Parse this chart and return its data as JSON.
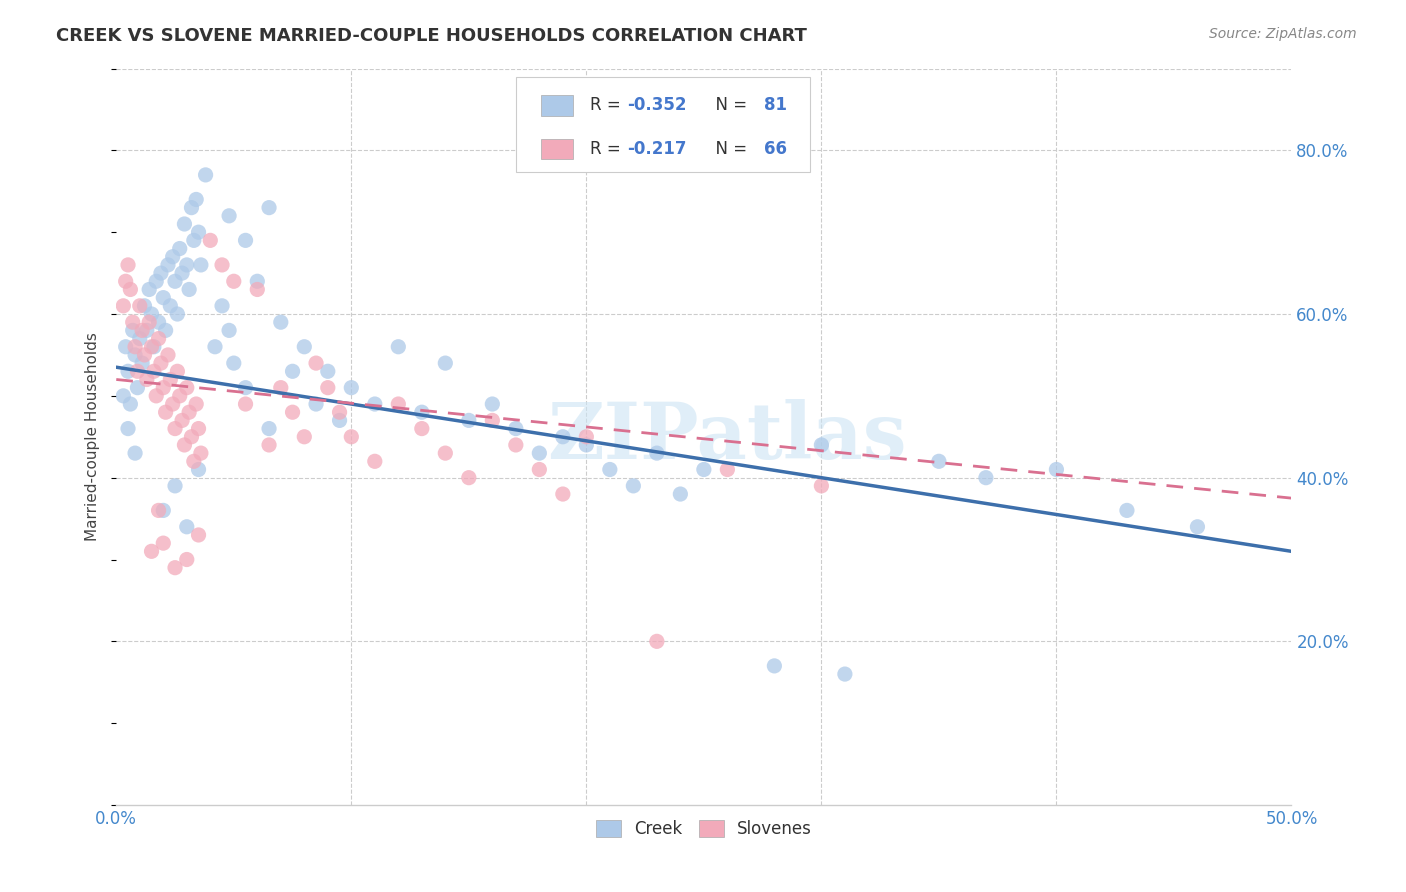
{
  "title": "CREEK VS SLOVENE MARRIED-COUPLE HOUSEHOLDS CORRELATION CHART",
  "source": "Source: ZipAtlas.com",
  "ylabel": "Married-couple Households",
  "xmin": 0.0,
  "xmax": 0.5,
  "ymin": 0.0,
  "ymax": 0.9,
  "creek_color": "#adc9e8",
  "slovene_color": "#f2aaba",
  "creek_line_color": "#3d6fab",
  "slovene_line_color": "#d97090",
  "legend_text_color": "#4477cc",
  "watermark": "ZIPatlas",
  "creek_R": "-0.352",
  "creek_N": "81",
  "slovene_R": "-0.217",
  "slovene_N": "66",
  "creek_trendline": [
    [
      0.0,
      0.535
    ],
    [
      0.5,
      0.31
    ]
  ],
  "slovene_trendline": [
    [
      0.0,
      0.52
    ],
    [
      0.5,
      0.375
    ]
  ],
  "creek_scatter": [
    [
      0.003,
      0.5
    ],
    [
      0.004,
      0.56
    ],
    [
      0.005,
      0.53
    ],
    [
      0.006,
      0.49
    ],
    [
      0.007,
      0.58
    ],
    [
      0.008,
      0.55
    ],
    [
      0.009,
      0.51
    ],
    [
      0.01,
      0.57
    ],
    [
      0.011,
      0.54
    ],
    [
      0.012,
      0.61
    ],
    [
      0.013,
      0.58
    ],
    [
      0.014,
      0.63
    ],
    [
      0.015,
      0.6
    ],
    [
      0.016,
      0.56
    ],
    [
      0.017,
      0.64
    ],
    [
      0.018,
      0.59
    ],
    [
      0.019,
      0.65
    ],
    [
      0.02,
      0.62
    ],
    [
      0.021,
      0.58
    ],
    [
      0.022,
      0.66
    ],
    [
      0.023,
      0.61
    ],
    [
      0.024,
      0.67
    ],
    [
      0.025,
      0.64
    ],
    [
      0.026,
      0.6
    ],
    [
      0.027,
      0.68
    ],
    [
      0.028,
      0.65
    ],
    [
      0.029,
      0.71
    ],
    [
      0.03,
      0.66
    ],
    [
      0.031,
      0.63
    ],
    [
      0.032,
      0.73
    ],
    [
      0.033,
      0.69
    ],
    [
      0.034,
      0.74
    ],
    [
      0.035,
      0.7
    ],
    [
      0.036,
      0.66
    ],
    [
      0.038,
      0.77
    ],
    [
      0.042,
      0.56
    ],
    [
      0.045,
      0.61
    ],
    [
      0.048,
      0.58
    ],
    [
      0.05,
      0.54
    ],
    [
      0.055,
      0.51
    ],
    [
      0.06,
      0.64
    ],
    [
      0.065,
      0.46
    ],
    [
      0.07,
      0.59
    ],
    [
      0.075,
      0.53
    ],
    [
      0.08,
      0.56
    ],
    [
      0.085,
      0.49
    ],
    [
      0.09,
      0.53
    ],
    [
      0.095,
      0.47
    ],
    [
      0.1,
      0.51
    ],
    [
      0.11,
      0.49
    ],
    [
      0.12,
      0.56
    ],
    [
      0.13,
      0.48
    ],
    [
      0.14,
      0.54
    ],
    [
      0.15,
      0.47
    ],
    [
      0.16,
      0.49
    ],
    [
      0.17,
      0.46
    ],
    [
      0.18,
      0.43
    ],
    [
      0.19,
      0.45
    ],
    [
      0.2,
      0.44
    ],
    [
      0.048,
      0.72
    ],
    [
      0.055,
      0.69
    ],
    [
      0.065,
      0.73
    ],
    [
      0.02,
      0.36
    ],
    [
      0.025,
      0.39
    ],
    [
      0.03,
      0.34
    ],
    [
      0.035,
      0.41
    ],
    [
      0.21,
      0.41
    ],
    [
      0.22,
      0.39
    ],
    [
      0.23,
      0.43
    ],
    [
      0.24,
      0.38
    ],
    [
      0.25,
      0.41
    ],
    [
      0.3,
      0.44
    ],
    [
      0.35,
      0.42
    ],
    [
      0.37,
      0.4
    ],
    [
      0.4,
      0.41
    ],
    [
      0.43,
      0.36
    ],
    [
      0.46,
      0.34
    ],
    [
      0.28,
      0.17
    ],
    [
      0.31,
      0.16
    ],
    [
      0.005,
      0.46
    ],
    [
      0.008,
      0.43
    ]
  ],
  "slovene_scatter": [
    [
      0.003,
      0.61
    ],
    [
      0.004,
      0.64
    ],
    [
      0.005,
      0.66
    ],
    [
      0.006,
      0.63
    ],
    [
      0.007,
      0.59
    ],
    [
      0.008,
      0.56
    ],
    [
      0.009,
      0.53
    ],
    [
      0.01,
      0.61
    ],
    [
      0.011,
      0.58
    ],
    [
      0.012,
      0.55
    ],
    [
      0.013,
      0.52
    ],
    [
      0.014,
      0.59
    ],
    [
      0.015,
      0.56
    ],
    [
      0.016,
      0.53
    ],
    [
      0.017,
      0.5
    ],
    [
      0.018,
      0.57
    ],
    [
      0.019,
      0.54
    ],
    [
      0.02,
      0.51
    ],
    [
      0.021,
      0.48
    ],
    [
      0.022,
      0.55
    ],
    [
      0.023,
      0.52
    ],
    [
      0.024,
      0.49
    ],
    [
      0.025,
      0.46
    ],
    [
      0.026,
      0.53
    ],
    [
      0.027,
      0.5
    ],
    [
      0.028,
      0.47
    ],
    [
      0.029,
      0.44
    ],
    [
      0.03,
      0.51
    ],
    [
      0.031,
      0.48
    ],
    [
      0.032,
      0.45
    ],
    [
      0.033,
      0.42
    ],
    [
      0.034,
      0.49
    ],
    [
      0.035,
      0.46
    ],
    [
      0.036,
      0.43
    ],
    [
      0.04,
      0.69
    ],
    [
      0.045,
      0.66
    ],
    [
      0.05,
      0.64
    ],
    [
      0.055,
      0.49
    ],
    [
      0.06,
      0.63
    ],
    [
      0.065,
      0.44
    ],
    [
      0.07,
      0.51
    ],
    [
      0.075,
      0.48
    ],
    [
      0.08,
      0.45
    ],
    [
      0.085,
      0.54
    ],
    [
      0.09,
      0.51
    ],
    [
      0.095,
      0.48
    ],
    [
      0.1,
      0.45
    ],
    [
      0.11,
      0.42
    ],
    [
      0.12,
      0.49
    ],
    [
      0.13,
      0.46
    ],
    [
      0.14,
      0.43
    ],
    [
      0.15,
      0.4
    ],
    [
      0.16,
      0.47
    ],
    [
      0.17,
      0.44
    ],
    [
      0.18,
      0.41
    ],
    [
      0.19,
      0.38
    ],
    [
      0.2,
      0.45
    ],
    [
      0.015,
      0.31
    ],
    [
      0.018,
      0.36
    ],
    [
      0.02,
      0.32
    ],
    [
      0.025,
      0.29
    ],
    [
      0.03,
      0.3
    ],
    [
      0.035,
      0.33
    ],
    [
      0.26,
      0.41
    ],
    [
      0.3,
      0.39
    ],
    [
      0.23,
      0.2
    ]
  ]
}
